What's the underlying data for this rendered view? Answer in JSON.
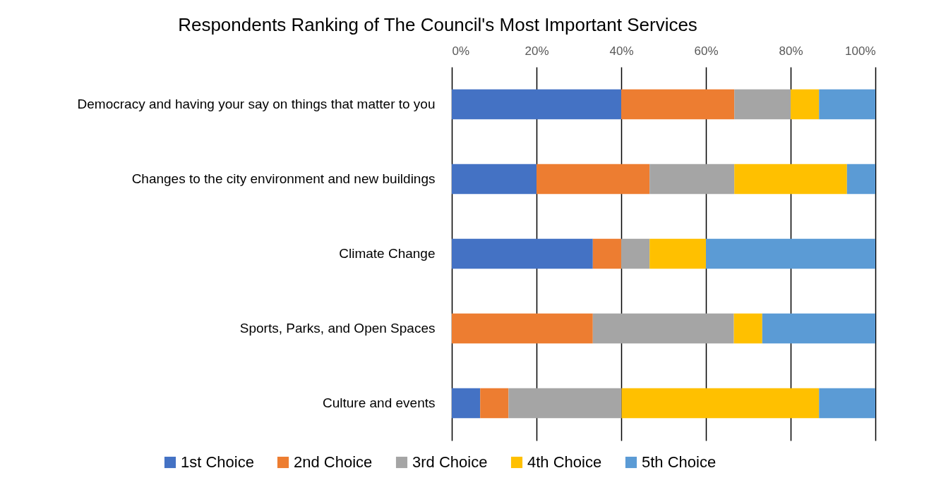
{
  "chart_data": {
    "type": "bar",
    "orientation": "horizontal",
    "stacked": true,
    "title": "Respondents Ranking of The Council's Most Important Services",
    "categories": [
      "Democracy and having your say on things that matter to you",
      "Changes to the city environment and new buildings",
      "Climate Change",
      "Sports, Parks, and Open Spaces",
      "Culture and events"
    ],
    "series": [
      {
        "name": "1st Choice",
        "color": "#4472c4",
        "values": [
          40,
          20,
          33.3,
          0,
          6.7
        ]
      },
      {
        "name": "2nd Choice",
        "color": "#ed7d31",
        "values": [
          26.7,
          26.7,
          6.7,
          33.3,
          6.7
        ]
      },
      {
        "name": "3rd Choice",
        "color": "#a5a5a5",
        "values": [
          13.3,
          20,
          6.7,
          33.3,
          26.7
        ]
      },
      {
        "name": "4th Choice",
        "color": "#ffc000",
        "values": [
          6.7,
          26.6,
          13.3,
          6.7,
          46.6
        ]
      },
      {
        "name": "5th Choice",
        "color": "#5b9bd5",
        "values": [
          13.3,
          6.7,
          40,
          26.7,
          13.3
        ]
      }
    ],
    "xlim": [
      0,
      100
    ],
    "xticks": [
      {
        "value": 0,
        "label": "0%"
      },
      {
        "value": 20,
        "label": "20%"
      },
      {
        "value": 40,
        "label": "40%"
      },
      {
        "value": 60,
        "label": "60%"
      },
      {
        "value": 80,
        "label": "80%"
      },
      {
        "value": 100,
        "label": "100%"
      }
    ],
    "grid": "x",
    "legend": "bottom"
  }
}
